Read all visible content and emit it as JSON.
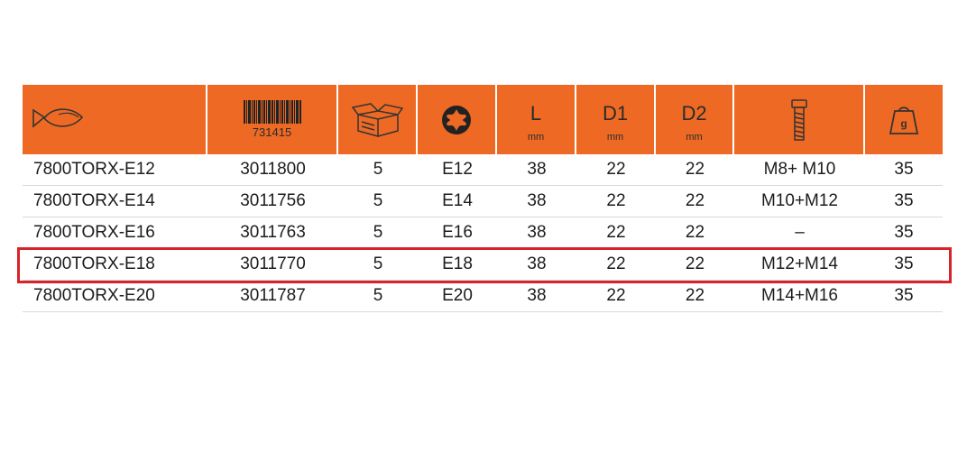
{
  "header": {
    "product_icon": "fish-icon",
    "barcode_icon": "barcode-icon",
    "barcode_number": "731415",
    "package_icon": "box-icon",
    "torx_icon": "torx-icon",
    "length_label": "L",
    "length_unit": "mm",
    "d1_label": "D1",
    "d1_unit": "mm",
    "d2_label": "D2",
    "d2_unit": "mm",
    "bolt_icon": "bolt-icon",
    "weight_icon": "weight-icon",
    "weight_label": "g"
  },
  "colors": {
    "header_bg": "#ee6a24",
    "highlight_border": "#d9232a"
  },
  "rows": [
    {
      "model": "7800TORX-E12",
      "ean": "3011800",
      "pack": "5",
      "torx": "E12",
      "l": "38",
      "d1": "22",
      "d2": "22",
      "bolt": "M8+ M10",
      "weight": "35"
    },
    {
      "model": "7800TORX-E14",
      "ean": "3011756",
      "pack": "5",
      "torx": "E14",
      "l": "38",
      "d1": "22",
      "d2": "22",
      "bolt": "M10+M12",
      "weight": "35"
    },
    {
      "model": "7800TORX-E16",
      "ean": "3011763",
      "pack": "5",
      "torx": "E16",
      "l": "38",
      "d1": "22",
      "d2": "22",
      "bolt": "–",
      "weight": "35"
    },
    {
      "model": "7800TORX-E18",
      "ean": "3011770",
      "pack": "5",
      "torx": "E18",
      "l": "38",
      "d1": "22",
      "d2": "22",
      "bolt": "M12+M14",
      "weight": "35"
    },
    {
      "model": "7800TORX-E20",
      "ean": "3011787",
      "pack": "5",
      "torx": "E20",
      "l": "38",
      "d1": "22",
      "d2": "22",
      "bolt": "M14+M16",
      "weight": "35"
    }
  ],
  "highlighted_row": "7800TORX-E18"
}
